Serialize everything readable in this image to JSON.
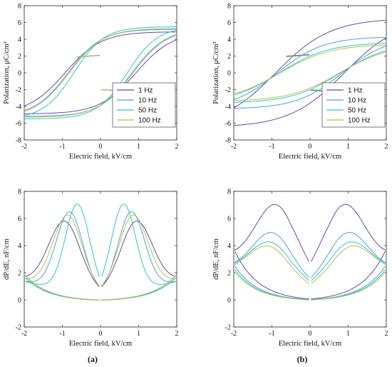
{
  "figure": {
    "panel_labels": [
      "(a)",
      "(b)"
    ]
  },
  "chart_data": [
    {
      "id": "a-top",
      "type": "line",
      "xlabel": "Electric field, kV/cm",
      "ylabel": "Polarization, μC/cm²",
      "xlim": [
        -2,
        2
      ],
      "ylim": [
        -8,
        8
      ],
      "xticks": [
        -2,
        -1,
        0,
        1,
        2
      ],
      "yticks": [
        -8,
        -6,
        -4,
        -2,
        0,
        2,
        4,
        6,
        8
      ],
      "legend_position": "lower-right",
      "grid": false,
      "series": [
        {
          "name": "1 Hz",
          "color": "#5b4ea8",
          "model": "loop",
          "params": {
            "Pm": 4.9,
            "Ec": 0.93,
            "w": 0.6,
            "gap": 0.4
          }
        },
        {
          "name": "10 Hz",
          "color": "#4d9fe0",
          "model": "loop",
          "params": {
            "Pm": 5.2,
            "Ec": 0.85,
            "w": 0.55,
            "gap": 0.45
          }
        },
        {
          "name": "50 Hz",
          "color": "#2dc3cc",
          "model": "loop",
          "params": {
            "Pm": 5.5,
            "Ec": 0.7,
            "w": 0.5,
            "gap": 0.5
          }
        },
        {
          "name": "100 Hz",
          "color": "#b8c240",
          "model": "loop",
          "params": {
            "Pm": 5.3,
            "Ec": 0.82,
            "w": 0.56,
            "gap": 0.42
          }
        }
      ]
    },
    {
      "id": "b-top",
      "type": "line",
      "xlabel": "Electric field, kV/cm",
      "ylabel": "Polarization, μC/cm²",
      "xlim": [
        -2,
        2
      ],
      "ylim": [
        -8,
        8
      ],
      "xticks": [
        -2,
        -1,
        0,
        1,
        2
      ],
      "yticks": [
        -8,
        -6,
        -4,
        -2,
        0,
        2,
        4,
        6,
        8
      ],
      "legend_position": "lower-right",
      "grid": false,
      "series": [
        {
          "name": "1 Hz",
          "color": "#5b4ea8",
          "model": "loop",
          "params": {
            "Pm": 6.5,
            "Ec": 0.9,
            "w": 0.9,
            "gap": 0.9
          }
        },
        {
          "name": "10 Hz",
          "color": "#4d9fe0",
          "model": "loop",
          "params": {
            "Pm": 4.3,
            "Ec": 0.85,
            "w": 0.75,
            "gap": 0.6
          }
        },
        {
          "name": "50 Hz",
          "color": "#2dc3cc",
          "model": "loop",
          "params": {
            "Pm": 3.6,
            "Ec": 0.8,
            "w": 0.8,
            "gap": 0.5
          }
        },
        {
          "name": "100 Hz",
          "color": "#b8c240",
          "model": "loop",
          "params": {
            "Pm": 3.4,
            "Ec": 0.78,
            "w": 0.82,
            "gap": 0.45
          }
        }
      ]
    },
    {
      "id": "a-bottom",
      "type": "line",
      "xlabel": "Electric field, kV/cm",
      "ylabel": "dP/dE, nF/cm",
      "xlim": [
        -2,
        2
      ],
      "ylim": [
        -2,
        8
      ],
      "xticks": [
        -2,
        -1,
        0,
        1,
        2
      ],
      "yticks": [
        -2,
        0,
        2,
        4,
        6,
        8
      ],
      "grid": false,
      "series": [
        {
          "name": "1 Hz",
          "color": "#5b4ea8",
          "model": "peak",
          "params": {
            "Ec": 0.93,
            "peak": 5.5,
            "w": 0.6,
            "base": 2.2
          }
        },
        {
          "name": "10 Hz",
          "color": "#4d9fe0",
          "model": "peak",
          "params": {
            "Ec": 0.8,
            "peak": 6.3,
            "w": 0.5,
            "base": 2.0
          }
        },
        {
          "name": "50 Hz",
          "color": "#2dc3cc",
          "model": "peak",
          "params": {
            "Ec": 0.6,
            "peak": 7.0,
            "w": 0.45,
            "base": 2.0
          }
        },
        {
          "name": "100 Hz",
          "color": "#b8c240",
          "model": "peak",
          "params": {
            "Ec": 0.85,
            "peak": 6.0,
            "w": 0.55,
            "base": 2.2
          }
        }
      ]
    },
    {
      "id": "b-bottom",
      "type": "line",
      "xlabel": "Electric field, kV/cm",
      "ylabel": "dP/dE, nF/cm",
      "xlim": [
        -2,
        2
      ],
      "ylim": [
        -2,
        8
      ],
      "xticks": [
        -2,
        -1,
        0,
        1,
        2
      ],
      "yticks": [
        -2,
        0,
        2,
        4,
        6,
        8
      ],
      "grid": false,
      "series": [
        {
          "name": "1 Hz",
          "color": "#5b4ea8",
          "model": "peak",
          "params": {
            "Ec": 0.85,
            "peak": 6.5,
            "w": 0.8,
            "base": 4.3
          }
        },
        {
          "name": "10 Hz",
          "color": "#4d9fe0",
          "model": "peak",
          "params": {
            "Ec": 0.95,
            "peak": 4.5,
            "w": 0.8,
            "base": 3.0
          }
        },
        {
          "name": "50 Hz",
          "color": "#2dc3cc",
          "model": "peak",
          "params": {
            "Ec": 1.0,
            "peak": 3.8,
            "w": 0.85,
            "base": 2.7
          }
        },
        {
          "name": "100 Hz",
          "color": "#b8c240",
          "model": "peak",
          "params": {
            "Ec": 1.05,
            "peak": 3.5,
            "w": 0.85,
            "base": 2.5
          }
        }
      ]
    }
  ]
}
